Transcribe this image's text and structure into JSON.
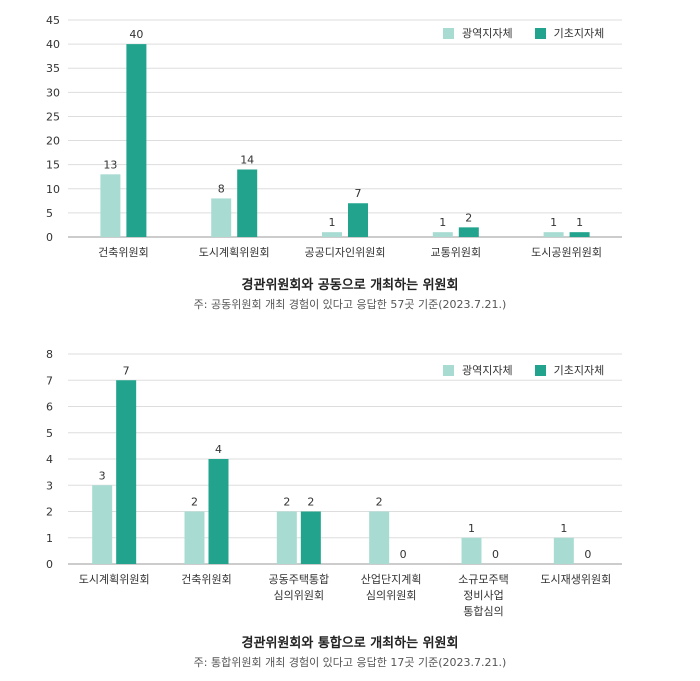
{
  "colors": {
    "regional": "#a8dcd3",
    "basic": "#22a38d",
    "grid": "#dddddd",
    "axis": "#999999",
    "text": "#333333"
  },
  "chart_data": [
    {
      "type": "bar",
      "title": "경관위원회와 공동으로 개최하는 위원회",
      "note": "주: 공동위원회 개최 경험이 있다고 응답한 57곳 기준(2023.7.21.)",
      "categories": [
        [
          "건축위원회"
        ],
        [
          "도시계획위원회"
        ],
        [
          "공공디자인위원회"
        ],
        [
          "교통위원회"
        ],
        [
          "도시공원위원회"
        ]
      ],
      "series": [
        {
          "name": "광역지자체",
          "values": [
            13,
            8,
            1,
            1,
            1
          ]
        },
        {
          "name": "기초지자체",
          "values": [
            40,
            14,
            7,
            2,
            1
          ]
        }
      ],
      "ylim": [
        0,
        45
      ],
      "yticks": [
        0,
        5,
        10,
        15,
        20,
        25,
        30,
        35,
        40,
        45
      ],
      "grid": true,
      "legend": "top-right",
      "bar_labels": [
        [
          "13",
          "8",
          "1",
          "1",
          "1"
        ],
        [
          "40",
          "14",
          "7",
          "2",
          "1"
        ]
      ]
    },
    {
      "type": "bar",
      "title": "경관위원회와 통합으로 개최하는 위원회",
      "note": "주: 통합위원회 개최 경험이 있다고 응답한 17곳 기준(2023.7.21.)",
      "categories": [
        [
          "도시계획위원회"
        ],
        [
          "건축위원회"
        ],
        [
          "공동주택통합",
          "심의위원회"
        ],
        [
          "산업단지계획",
          "심의위원회"
        ],
        [
          "소규모주택",
          "정비사업",
          "통합심의"
        ],
        [
          "도시재생위원회"
        ]
      ],
      "series": [
        {
          "name": "광역지자체",
          "values": [
            3,
            2,
            2,
            2,
            1,
            1
          ]
        },
        {
          "name": "기초지자체",
          "values": [
            7,
            4,
            2,
            0,
            0,
            0
          ]
        }
      ],
      "ylim": [
        0,
        8
      ],
      "yticks": [
        0,
        1,
        2,
        3,
        4,
        5,
        6,
        7,
        8
      ],
      "grid": true,
      "legend": "top-right",
      "bar_labels": [
        [
          "3",
          "2",
          "2",
          "2",
          "1",
          "1"
        ],
        [
          "7",
          "4",
          "2",
          "0",
          "0",
          "0"
        ]
      ]
    }
  ]
}
